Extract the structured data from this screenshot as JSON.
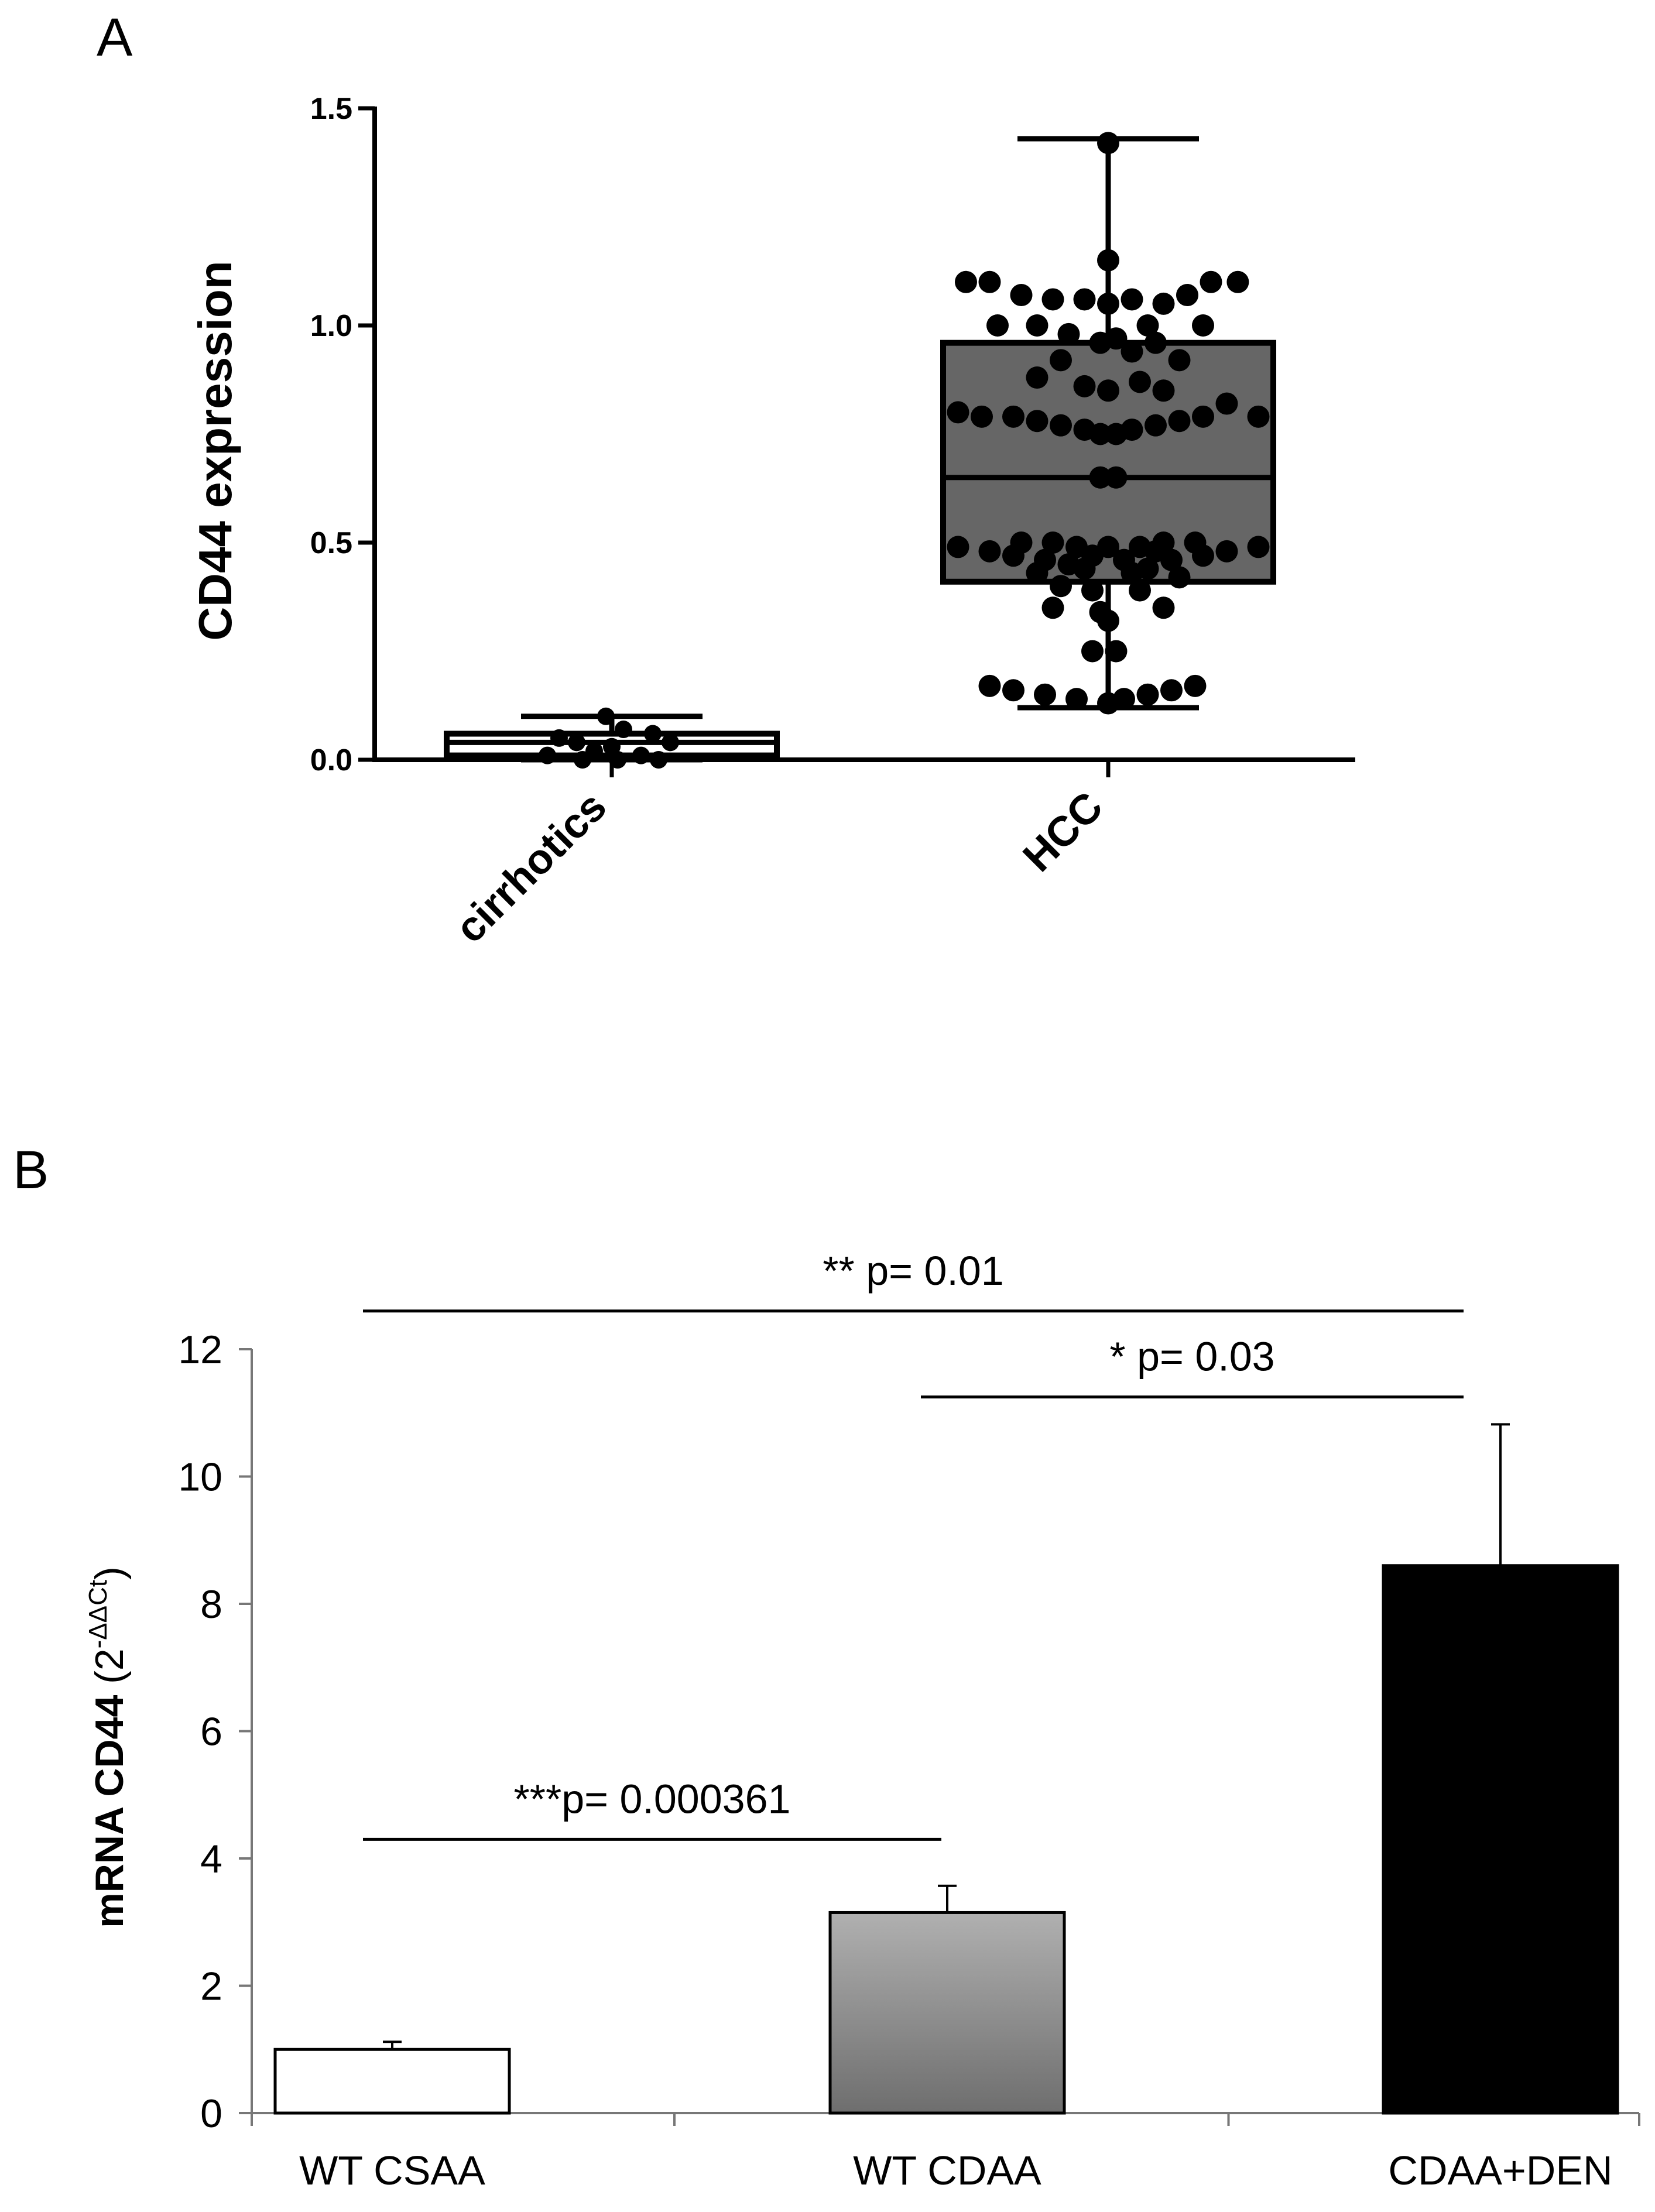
{
  "chart_data": [
    {
      "panel_label": "A",
      "type": "box",
      "ylabel": "CD44 expression",
      "ylim": [
        0,
        1.5
      ],
      "yticks": [
        "0.0",
        "0.5",
        "1.0",
        "1.5"
      ],
      "ytick_values": [
        0,
        0.5,
        1.0,
        1.5
      ],
      "categories": [
        "cirrhotics",
        "HCC"
      ],
      "boxes": [
        {
          "name": "cirrhotics",
          "min": 0.0,
          "q1": 0.01,
          "median": 0.04,
          "q3": 0.06,
          "max": 0.1,
          "fill": "#ffffff"
        },
        {
          "name": "HCC",
          "min": 0.12,
          "q1": 0.41,
          "median": 0.65,
          "q3": 0.96,
          "max": 1.43,
          "fill": "#666666"
        }
      ],
      "points": [
        {
          "group": "cirrhotics",
          "values": [
            0.1,
            0.07,
            0.06,
            0.05,
            0.04,
            0.04,
            0.03,
            0.02,
            0.01,
            0.01,
            0.0,
            0.0,
            0.0
          ],
          "offsets": [
            -0.05,
            0.1,
            0.35,
            -0.45,
            -0.3,
            0.5,
            0.0,
            -0.15,
            -0.55,
            0.25,
            -0.25,
            0.05,
            0.4
          ]
        },
        {
          "group": "HCC",
          "values": [
            1.42,
            1.15,
            1.1,
            1.1,
            1.1,
            1.1,
            1.07,
            1.07,
            1.06,
            1.06,
            1.06,
            1.05,
            1.05,
            1.0,
            1.0,
            1.0,
            1.0,
            0.98,
            0.97,
            0.96,
            0.96,
            0.94,
            0.92,
            0.92,
            0.88,
            0.87,
            0.86,
            0.85,
            0.85,
            0.82,
            0.8,
            0.79,
            0.79,
            0.79,
            0.79,
            0.78,
            0.78,
            0.77,
            0.77,
            0.76,
            0.76,
            0.75,
            0.75,
            0.65,
            0.65,
            0.5,
            0.5,
            0.5,
            0.5,
            0.49,
            0.49,
            0.49,
            0.49,
            0.49,
            0.48,
            0.48,
            0.48,
            0.47,
            0.47,
            0.47,
            0.46,
            0.46,
            0.46,
            0.45,
            0.44,
            0.44,
            0.43,
            0.43,
            0.42,
            0.4,
            0.39,
            0.39,
            0.35,
            0.35,
            0.34,
            0.32,
            0.25,
            0.25,
            0.17,
            0.17,
            0.16,
            0.16,
            0.15,
            0.15,
            0.14,
            0.14,
            0.13
          ],
          "offsets": [
            0.0,
            0.0,
            -0.9,
            -0.75,
            0.65,
            0.82,
            -0.55,
            0.5,
            -0.35,
            -0.15,
            0.15,
            0.35,
            0.0,
            -0.7,
            -0.45,
            0.25,
            0.6,
            -0.25,
            0.05,
            -0.05,
            0.3,
            0.15,
            -0.3,
            0.45,
            -0.45,
            0.2,
            -0.15,
            0.0,
            0.35,
            0.75,
            -0.95,
            -0.8,
            0.95,
            0.6,
            -0.6,
            0.45,
            -0.45,
            0.3,
            -0.3,
            0.15,
            -0.15,
            0.05,
            -0.05,
            -0.05,
            0.05,
            -0.35,
            0.35,
            -0.55,
            0.55,
            -0.95,
            0.95,
            -0.2,
            0.2,
            0.0,
            -0.75,
            0.75,
            0.3,
            -0.6,
            0.6,
            -0.1,
            -0.4,
            0.4,
            0.1,
            -0.25,
            0.25,
            -0.15,
            0.15,
            -0.45,
            0.45,
            -0.3,
            0.2,
            -0.1,
            -0.35,
            0.35,
            -0.05,
            0.0,
            -0.1,
            0.05,
            -0.75,
            0.55,
            -0.6,
            0.4,
            -0.4,
            0.25,
            -0.2,
            0.1,
            0.0
          ]
        }
      ]
    },
    {
      "panel_label": "B",
      "type": "bar",
      "ylabel_main": "mRNA CD44",
      "ylabel_open": " (2",
      "ylabel_sup": "-ΔΔCt",
      "ylabel_close": ")",
      "ylim": [
        0,
        12
      ],
      "yticks": [
        "0",
        "2",
        "4",
        "6",
        "8",
        "10",
        "12"
      ],
      "ytick_values": [
        0,
        2,
        4,
        6,
        8,
        10,
        12
      ],
      "categories": [
        "WT CSAA",
        "WT CDAA",
        "CDAA+DEN"
      ],
      "values": [
        1.0,
        3.15,
        8.6
      ],
      "errors": [
        0.12,
        0.42,
        2.22
      ],
      "bar_fills": [
        "#ffffff",
        "gradient-gray",
        "#000000"
      ],
      "significance": [
        {
          "label": "***p= 0.000361",
          "from": 0,
          "to": 1,
          "y": 4.3
        },
        {
          "label": "* p= 0.03",
          "from": 1,
          "to": 2,
          "y": 11.25
        },
        {
          "label": "** p= 0.01",
          "from": 0,
          "to": 2,
          "y": 12.6
        }
      ]
    }
  ]
}
